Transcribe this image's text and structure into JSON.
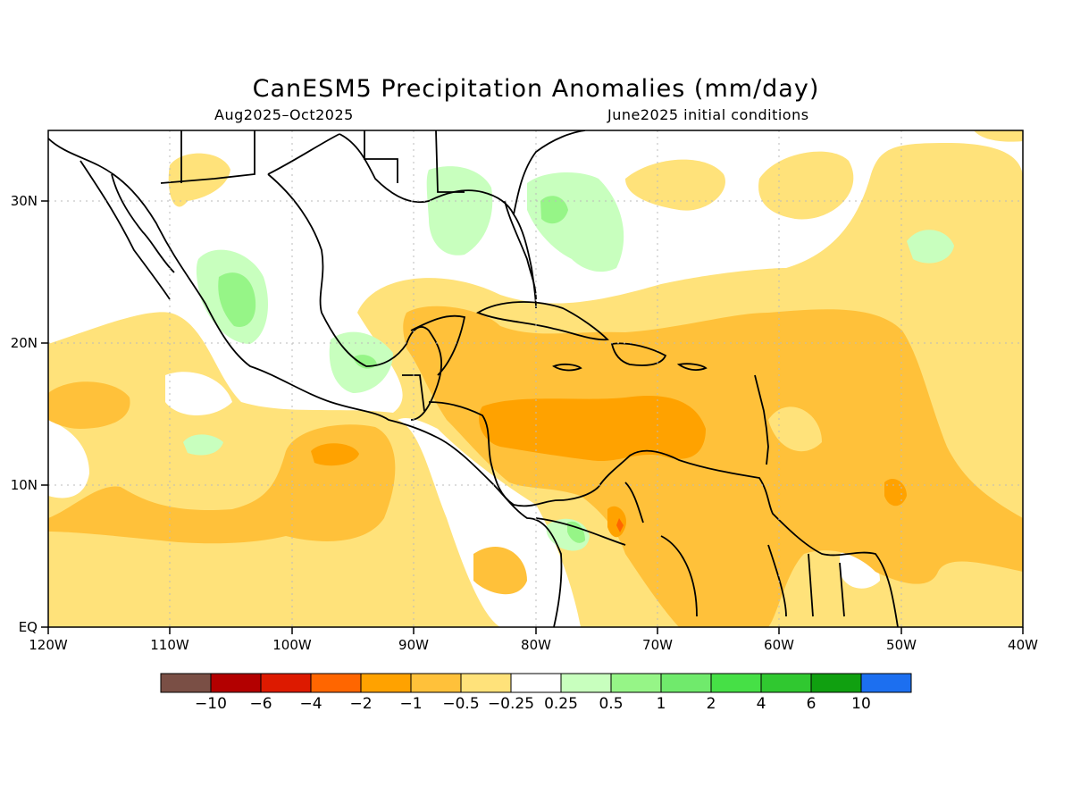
{
  "title": "CanESM5 Precipitation Anomalies (mm/day)",
  "period": "Aug2025–Oct2025",
  "init": "June2025 initial conditions",
  "axes": {
    "y_ticks": [
      "EQ",
      "10N",
      "20N",
      "30N"
    ],
    "x_ticks": [
      "120W",
      "110W",
      "100W",
      "90W",
      "80W",
      "70W",
      "60W",
      "50W",
      "40W"
    ]
  },
  "legend": {
    "colors": [
      "#7a4f45",
      "#b30000",
      "#dd1a00",
      "#ff6600",
      "#ffa200",
      "#ffc13a",
      "#ffe27a",
      "#ffffff",
      "#c8ffbe",
      "#96f587",
      "#70ea6c",
      "#46e046",
      "#30c830",
      "#10a010",
      "#1c6ff0"
    ],
    "labels": [
      "−10",
      "−6",
      "−4",
      "−2",
      "−1",
      "−0.5",
      "−0.25",
      "0.25",
      "0.5",
      "1",
      "2",
      "4",
      "6",
      "10"
    ]
  }
}
